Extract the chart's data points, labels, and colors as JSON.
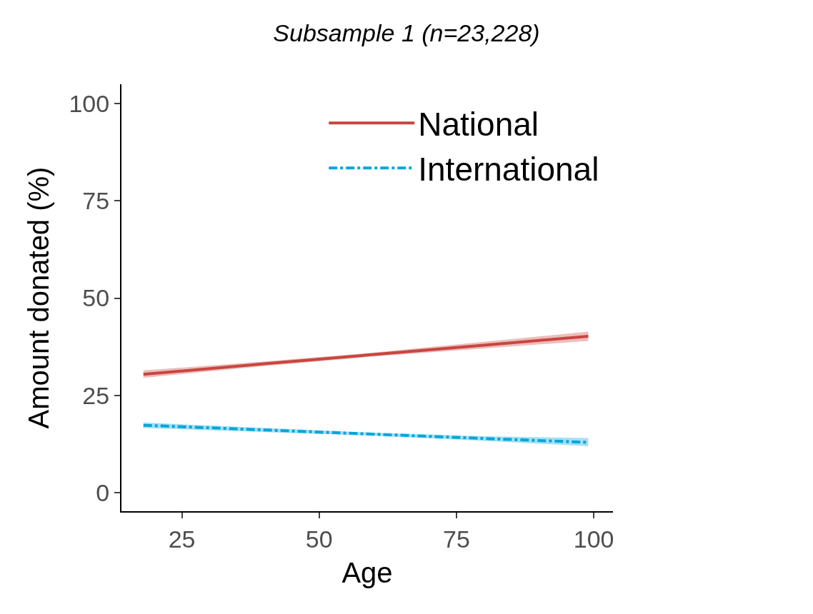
{
  "chart_data": {
    "type": "line",
    "title": "Subsample 1 (n=23,228)",
    "xlabel": "Age",
    "ylabel": "Amount donated (%)",
    "xlim": [
      14,
      103.5
    ],
    "xticks": [
      25,
      50,
      75,
      100
    ],
    "ylim": [
      -4.8,
      105
    ],
    "yticks": [
      0,
      25,
      50,
      75,
      100
    ],
    "grid": false,
    "legend": "top right",
    "marker": "none",
    "series": [
      {
        "name": "National",
        "color": "#c8463f",
        "line_style": "solid",
        "x": [
          18,
          40,
          60,
          80,
          99
        ],
        "values": [
          30.4,
          33.1,
          35.5,
          37.9,
          40.2
        ],
        "lower": [
          29.5,
          32.5,
          35.0,
          37.1,
          39.0
        ],
        "upper": [
          31.4,
          33.7,
          36.0,
          38.7,
          41.4
        ]
      },
      {
        "name": "International",
        "color": "#00a6dc",
        "line_style": "dashdot",
        "x": [
          18,
          40,
          60,
          80,
          99
        ],
        "values": [
          17.3,
          16.1,
          15.0,
          13.9,
          12.9
        ],
        "lower": [
          16.6,
          15.6,
          14.6,
          13.3,
          11.9
        ],
        "upper": [
          18.0,
          16.6,
          15.4,
          14.5,
          14.0
        ]
      }
    ]
  }
}
